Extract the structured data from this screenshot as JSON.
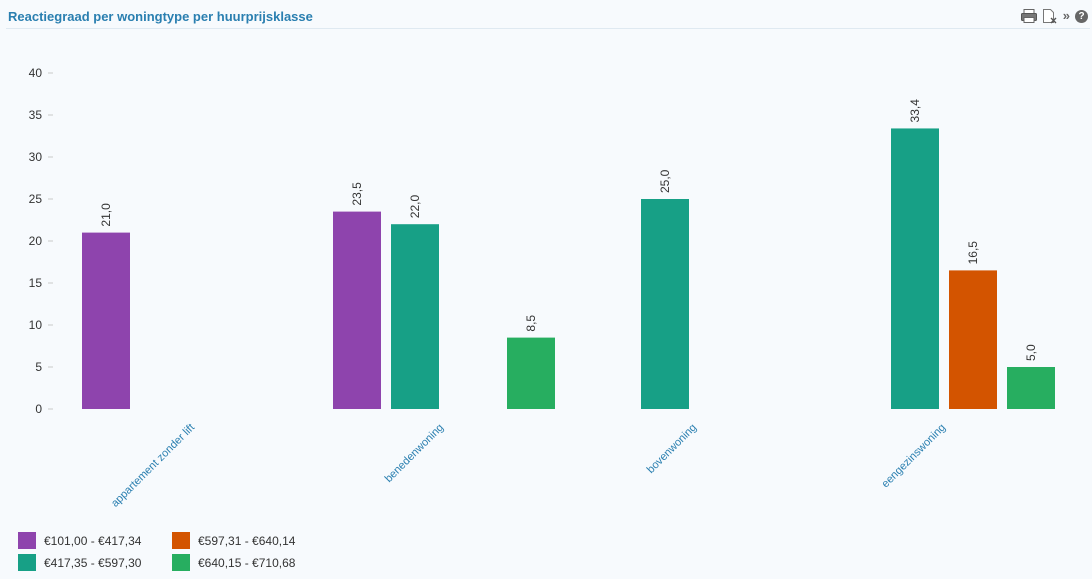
{
  "panel": {
    "title": "Reactiegraad per woningtype per huurprijsklasse",
    "tools": [
      "print-icon",
      "export-icon",
      "expand-icon",
      "help-icon"
    ],
    "help_glyph": "?",
    "expand_glyph": "»"
  },
  "chart_data": {
    "type": "bar",
    "title": "Reactiegraad per woningtype per huurprijsklasse",
    "xlabel": "",
    "ylabel": "",
    "ylim": [
      0,
      40
    ],
    "yticks": [
      0,
      5,
      10,
      15,
      20,
      25,
      30,
      35,
      40
    ],
    "grid": false,
    "legend_position": "bottom-left",
    "categories": [
      "appartement zonder lift",
      "benedenwoning",
      "bovenwoning",
      "eengezinswoning"
    ],
    "series": [
      {
        "name": "€101,00 - €417,34",
        "color": "#8e44ad",
        "values": [
          21.0,
          23.5,
          null,
          null
        ]
      },
      {
        "name": "€417,35 - €597,30",
        "color": "#17a086",
        "values": [
          null,
          22.0,
          25.0,
          33.4
        ]
      },
      {
        "name": "€597,31 - €640,14",
        "color": "#d35400",
        "values": [
          null,
          null,
          null,
          16.5
        ]
      },
      {
        "name": "€640,15 - €710,68",
        "color": "#27ae60",
        "values": [
          null,
          8.5,
          null,
          5.0
        ]
      }
    ],
    "data_labels": [
      "21,0",
      "23,5",
      "22,0",
      "8,5",
      "25,0",
      "33,4",
      "16,5",
      "5,0"
    ],
    "category_label_color": "#2a7fb0"
  },
  "legend": {
    "order": [
      0,
      2,
      1,
      3
    ]
  }
}
